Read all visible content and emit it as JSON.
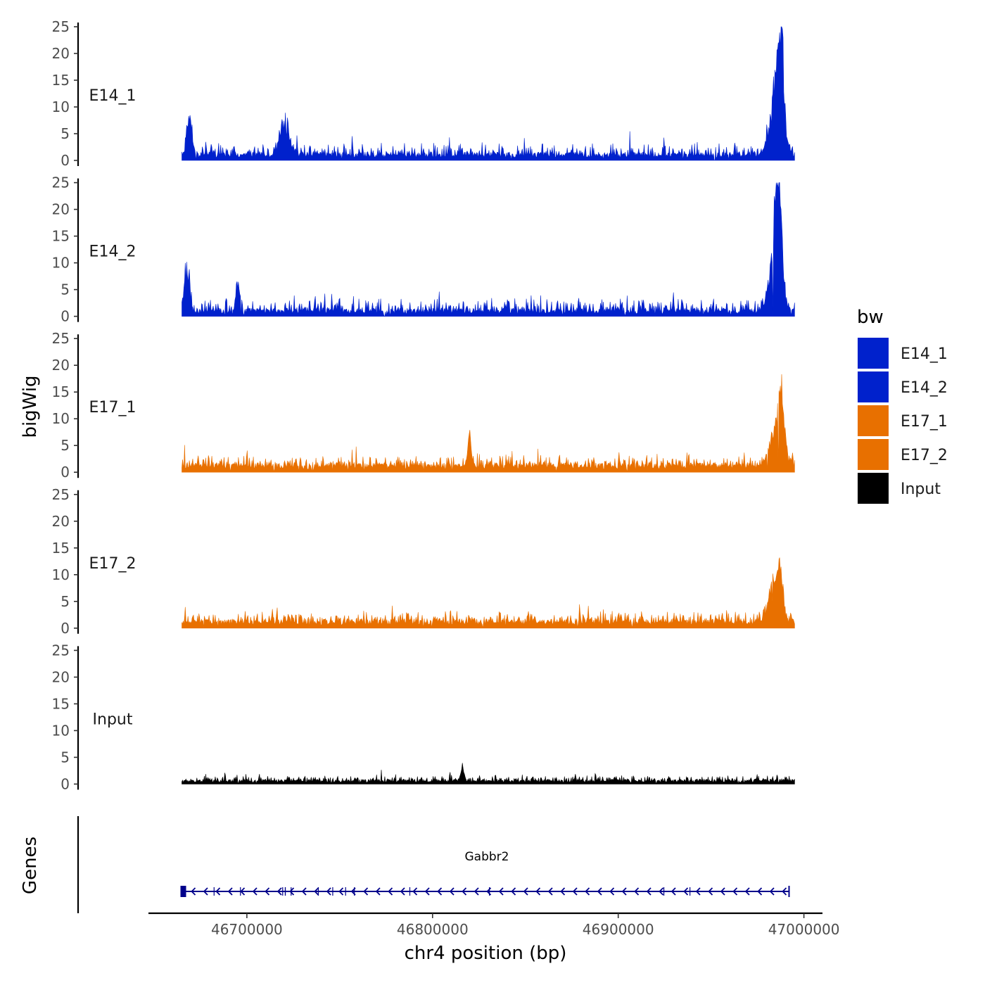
{
  "chart_data": {
    "type": "area",
    "title": "",
    "ylabel": "bigWig",
    "genes_label": "Genes",
    "xlabel": "chr4 position (bp)",
    "xlim": [
      46647000,
      47010000
    ],
    "data_range": [
      46665000,
      46995000
    ],
    "ylim": [
      0,
      25
    ],
    "y_ticks": [
      "0",
      "5",
      "10",
      "15",
      "20",
      "25"
    ],
    "x_ticks": [
      {
        "value": 46700000,
        "label": "46700000"
      },
      {
        "value": 46800000,
        "label": "46800000"
      },
      {
        "value": 46900000,
        "label": "46900000"
      },
      {
        "value": 47000000,
        "label": "47000000"
      }
    ],
    "tracks": [
      {
        "name": "E14_1",
        "color": "#0021CC",
        "baseline": 1.2,
        "noise": 1.8,
        "seed": 11,
        "peaks": [
          [
            46669000,
            8.5,
            1500
          ],
          [
            46720000,
            7,
            2500
          ],
          [
            46987500,
            22,
            1500
          ],
          [
            46985000,
            14,
            3000
          ]
        ]
      },
      {
        "name": "E14_2",
        "color": "#0021CC",
        "baseline": 1.2,
        "noise": 2.0,
        "seed": 23,
        "peaks": [
          [
            46667500,
            9.5,
            1500
          ],
          [
            46695000,
            6,
            1000
          ],
          [
            46986500,
            25,
            1500
          ],
          [
            46984500,
            14,
            3000
          ]
        ]
      },
      {
        "name": "E17_1",
        "color": "#E87000",
        "baseline": 1.4,
        "noise": 1.6,
        "seed": 37,
        "peaks": [
          [
            46820000,
            6.5,
            1000
          ],
          [
            46988000,
            13.5,
            1500
          ],
          [
            46985000,
            8.5,
            3000
          ]
        ]
      },
      {
        "name": "E17_2",
        "color": "#E87000",
        "baseline": 1.4,
        "noise": 1.6,
        "seed": 53,
        "peaks": [
          [
            46987000,
            10,
            1500
          ],
          [
            46984000,
            7,
            3000
          ]
        ]
      },
      {
        "name": "Input",
        "color": "#000000",
        "baseline": 0.7,
        "noise": 0.8,
        "seed": 71,
        "peaks": [
          [
            46816000,
            3.2,
            800
          ]
        ]
      }
    ],
    "gene": {
      "name": "Gabbr2",
      "start": 46665000,
      "end": 46992000,
      "strand": "-",
      "color": "#00008B"
    },
    "legend": {
      "title": "bw",
      "position": "right",
      "entries": [
        {
          "label": "E14_1",
          "color": "#0021CC"
        },
        {
          "label": "E14_2",
          "color": "#0021CC"
        },
        {
          "label": "E17_1",
          "color": "#E87000"
        },
        {
          "label": "E17_2",
          "color": "#E87000"
        },
        {
          "label": "Input",
          "color": "#000000"
        }
      ]
    }
  }
}
